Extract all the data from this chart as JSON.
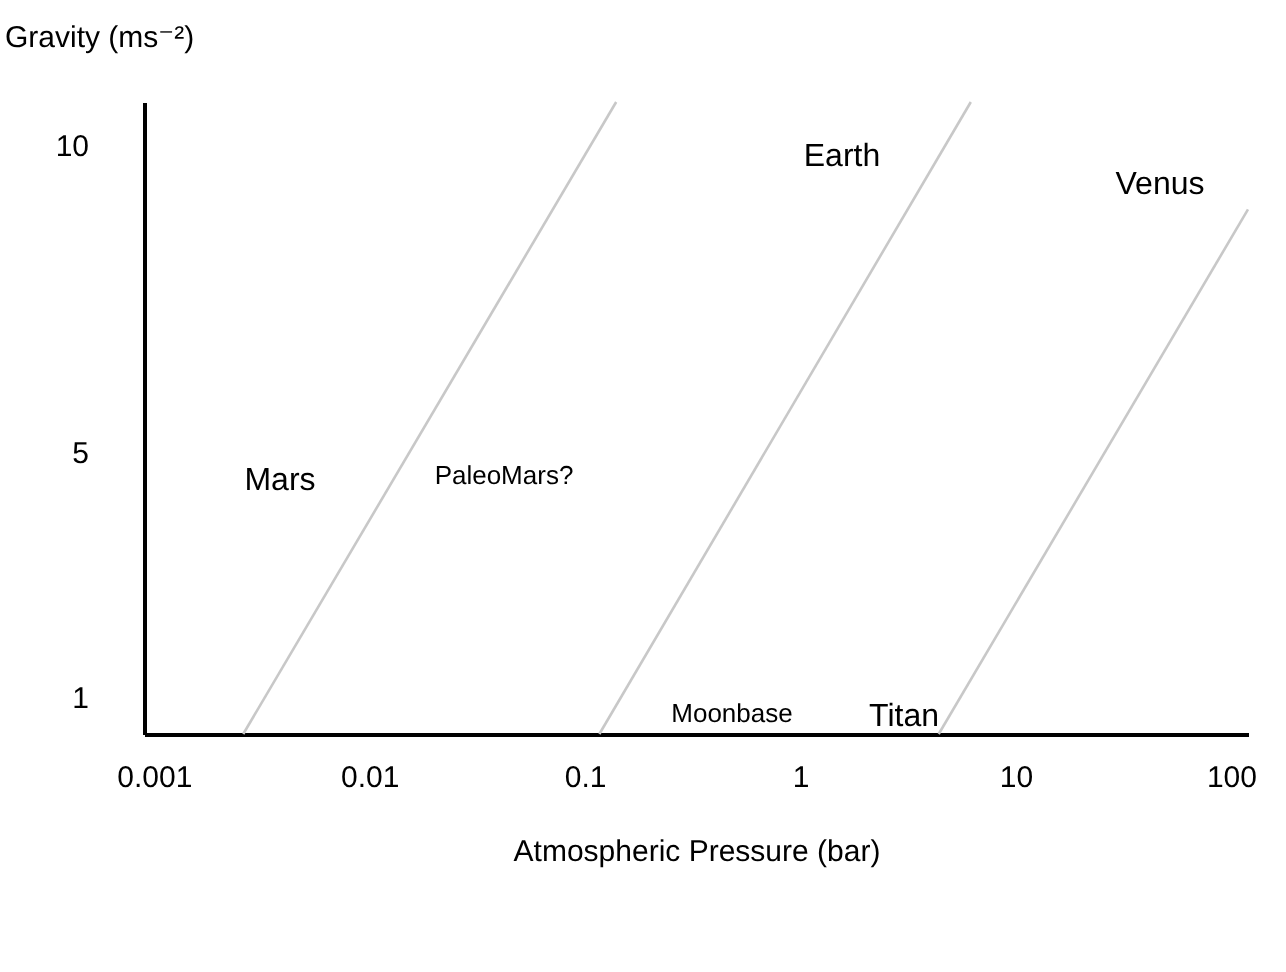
{
  "chart_data": {
    "type": "line",
    "xlabel": "Atmospheric Pressure (bar)",
    "ylabel": "Gravity (ms⁻²)",
    "log": "x",
    "xlim": [
      0.0009,
      120
    ],
    "xticks": [
      0.001,
      0.01,
      0.1,
      1,
      10,
      100
    ],
    "ylim": [
      0.4,
      10.7
    ],
    "yticks": [
      1,
      5,
      10
    ],
    "series": [
      {
        "color": "#c8c8c8",
        "x": [
          0.0026,
          0.14
        ],
        "values": [
          0.4,
          10.7
        ]
      },
      {
        "color": "#c8c8c8",
        "x": [
          0.117,
          6.2
        ],
        "values": [
          0.4,
          10.7
        ]
      },
      {
        "color": "#c8c8c8",
        "x": [
          4.4,
          120
        ],
        "values": [
          0.4,
          8.95
        ]
      }
    ],
    "annotations": [
      "Mars",
      "PaleoMars?",
      "Earth",
      "Venus",
      "Moonbase",
      "Titan"
    ]
  }
}
